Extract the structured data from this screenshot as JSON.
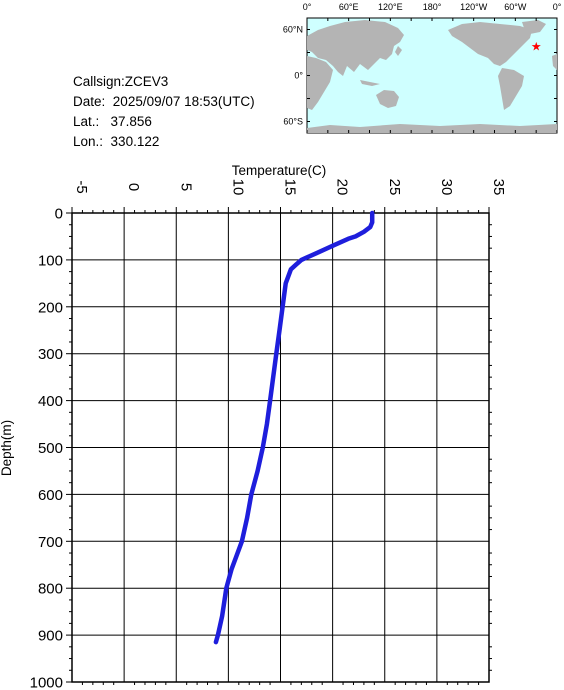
{
  "info": {
    "callsign_label": "Callsign:",
    "callsign": "ZCEV3",
    "date_label": "Date:",
    "date": "2025/09/07 18:53(UTC)",
    "lat_label": "Lat.:",
    "lat": "37.856",
    "lon_label": "Lon.:",
    "lon": "330.122"
  },
  "map": {
    "top_labels": [
      "0°",
      "60°E",
      "120°E",
      "180°",
      "120°W",
      "60°W",
      "0°"
    ],
    "left_labels": [
      "60°N",
      "0°",
      "60°S"
    ],
    "ocean_color": "#cfffff",
    "land_color": "#b4b4b4",
    "marker": {
      "lon": 330.122,
      "lat": 37.856,
      "symbol": "★",
      "color": "#ff0000"
    }
  },
  "chart_data": {
    "type": "line",
    "xlabel": "Temperature(C)",
    "ylabel": "Depth(m)",
    "xlim": [
      -5,
      35
    ],
    "ylim": [
      0,
      1000
    ],
    "x_ticks": [
      "-5",
      "0",
      "5",
      "10",
      "15",
      "20",
      "25",
      "30",
      "35"
    ],
    "y_ticks": [
      "0",
      "100",
      "200",
      "300",
      "400",
      "500",
      "600",
      "700",
      "800",
      "900",
      "1000"
    ],
    "grid": true,
    "line_color": "#1e1edc",
    "series": [
      {
        "x": [
          23.8,
          23.8,
          23.6,
          23.0,
          22.2,
          21.5,
          20.0,
          18.5,
          17.5,
          17.0,
          16.5,
          16.0,
          15.5,
          15.2,
          14.9,
          14.6,
          14.3,
          14.0,
          13.7,
          13.3,
          12.8,
          12.2,
          11.8,
          11.3,
          10.8,
          10.3,
          9.8,
          9.6,
          9.4,
          9.2,
          9.0,
          8.8
        ],
        "y": [
          0,
          20,
          30,
          40,
          50,
          55,
          70,
          85,
          95,
          100,
          110,
          120,
          150,
          200,
          250,
          300,
          350,
          400,
          450,
          500,
          550,
          600,
          650,
          700,
          730,
          760,
          800,
          830,
          860,
          880,
          900,
          915
        ]
      }
    ]
  }
}
